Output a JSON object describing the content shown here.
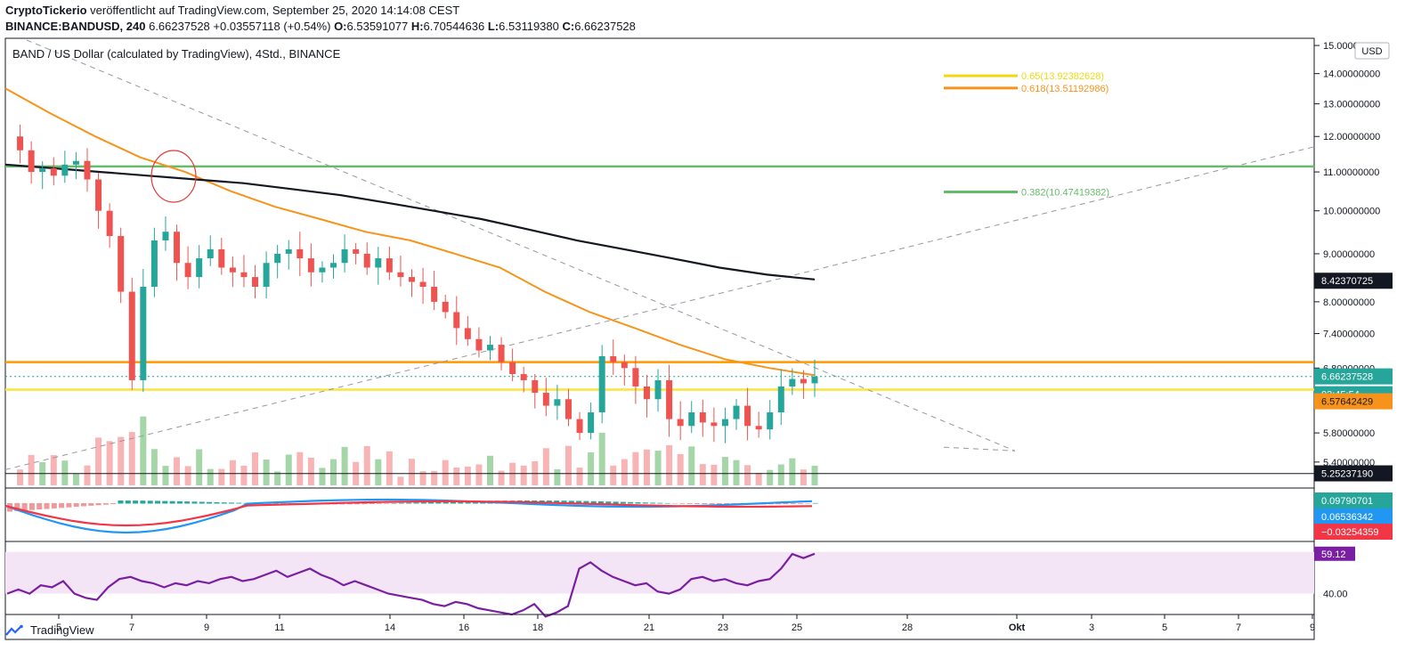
{
  "header": {
    "author": "CryptoTickerio",
    "published_text": "veröffentlicht auf TradingView.com, September 25, 2020 14:14:08 CEST",
    "symbol": "BINANCE:BANDUSD, 240",
    "price": "6.66237528",
    "change": "+0.03557118 (+0.54%)",
    "o_label": "O:",
    "o_value": "6.53591077",
    "h_label": "H:",
    "h_value": "6.70544636",
    "l_label": "L:",
    "l_value": "6.53119380",
    "c_label": "C:",
    "c_value": "6.66237528"
  },
  "footer": {
    "brand": "TradingView"
  },
  "chart_data": {
    "type": "candlestick",
    "title": "BAND / US Dollar (calculated by TradingView), 4Std., BINANCE",
    "currency": "USD",
    "y_scale": "log",
    "ylim": [
      5.1,
      15.2
    ],
    "y_ticks": [
      "15.00000000",
      "14.00000000",
      "13.00000000",
      "12.00000000",
      "11.00000000",
      "10.00000000",
      "9.00000000",
      "8.00000000",
      "7.40000000",
      "6.80000000",
      "5.80000000",
      "5.40000000"
    ],
    "x_ticks": [
      "5",
      "7",
      "9",
      "11",
      "14",
      "16",
      "18",
      "21",
      "23",
      "25",
      "28",
      "Okt",
      "3",
      "5",
      "7",
      "9"
    ],
    "close_path": [
      12.0,
      11.6,
      11.0,
      11.1,
      10.9,
      11.2,
      11.3,
      10.8,
      10.0,
      9.4,
      8.2,
      6.6,
      8.3,
      9.3,
      9.5,
      8.8,
      8.5,
      8.9,
      9.1,
      8.7,
      8.6,
      8.5,
      8.3,
      8.8,
      9.0,
      9.1,
      8.9,
      8.6,
      8.7,
      8.8,
      9.1,
      9.0,
      8.7,
      8.9,
      8.6,
      8.5,
      8.4,
      8.3,
      8.0,
      7.8,
      7.5,
      7.3,
      7.1,
      7.2,
      6.9,
      6.7,
      6.6,
      6.4,
      6.2,
      6.3,
      6.0,
      5.8,
      6.1,
      7.0,
      6.9,
      6.8,
      6.5,
      6.3,
      6.6,
      6.0,
      5.9,
      6.1,
      5.95,
      5.9,
      6.0,
      6.2,
      5.9,
      5.85,
      6.1,
      6.5,
      6.62,
      6.55,
      6.66
    ],
    "moving_averages": [
      {
        "color": "#f7931a",
        "values": [
          13.5,
          12.7,
          12.0,
          11.4,
          11.0,
          10.5,
          10.1,
          9.8,
          9.5,
          9.3,
          9.0,
          8.7,
          8.2,
          7.8,
          7.5,
          7.2,
          6.95,
          6.8,
          6.68
        ]
      },
      {
        "color": "#131722",
        "values": [
          11.2,
          11.1,
          11.0,
          10.9,
          10.8,
          10.7,
          10.55,
          10.4,
          10.2,
          10.0,
          9.8,
          9.55,
          9.3,
          9.1,
          8.9,
          8.7,
          8.55,
          8.45
        ]
      }
    ],
    "horizontal_levels": [
      {
        "value": 11.15,
        "color": "#66bb6a"
      },
      {
        "value": 6.9,
        "color": "#ff9800"
      },
      {
        "value": 6.45,
        "color": "#fbe43d"
      },
      {
        "value": 5.25,
        "color": "#131722"
      }
    ],
    "fib_levels": [
      {
        "label": "0.65(13.92382628)",
        "value": 13.92382628,
        "color": "#f0d90f"
      },
      {
        "label": "0.618(13.51192986)",
        "value": 13.51192986,
        "color": "#f7931a"
      },
      {
        "label": "0.382(10.47419382)",
        "value": 10.47419382,
        "color": "#66bb6a"
      }
    ],
    "price_labels": [
      {
        "text": "8.42370725",
        "bg": "#131722",
        "fg": "#ffffff"
      },
      {
        "text": "6.66237528",
        "bg": "#26a69a",
        "fg": "#ffffff"
      },
      {
        "text": "03:45:54",
        "bg": "#26a69a",
        "fg": "#ffffff"
      },
      {
        "text": "6.57642429",
        "bg": "#f7931a",
        "fg": "#131722"
      },
      {
        "text": "5.25237190",
        "bg": "#131722",
        "fg": "#ffffff"
      }
    ],
    "macd": {
      "labels": [
        {
          "text": "0.09790701",
          "bg": "#26a69a"
        },
        {
          "text": "0.06536342",
          "bg": "#2196f3"
        },
        {
          "text": "−0.03254359",
          "bg": "#f23645"
        }
      ]
    },
    "rsi": {
      "value_label": "59.12",
      "tick": "40.00",
      "values": [
        40,
        42,
        40,
        44,
        43,
        46,
        40,
        38,
        37,
        43,
        47,
        48,
        46,
        45,
        43,
        45,
        44,
        46,
        45,
        47,
        48,
        46,
        47,
        49,
        51,
        48,
        50,
        52,
        49,
        47,
        44,
        46,
        44,
        42,
        40,
        39,
        38,
        37,
        35,
        34,
        36,
        35,
        33,
        32,
        31,
        30,
        32,
        35,
        29,
        31,
        34,
        52,
        55,
        51,
        48,
        46,
        44,
        45,
        41,
        40,
        42,
        47,
        48,
        46,
        47,
        45,
        44,
        46,
        47,
        52,
        59,
        57,
        59.12
      ]
    },
    "colors": {
      "up": "#26a69a",
      "down": "#ef5350",
      "rsi_line": "#7b1fa2",
      "rsi_bg": "#f3e5f5"
    }
  }
}
